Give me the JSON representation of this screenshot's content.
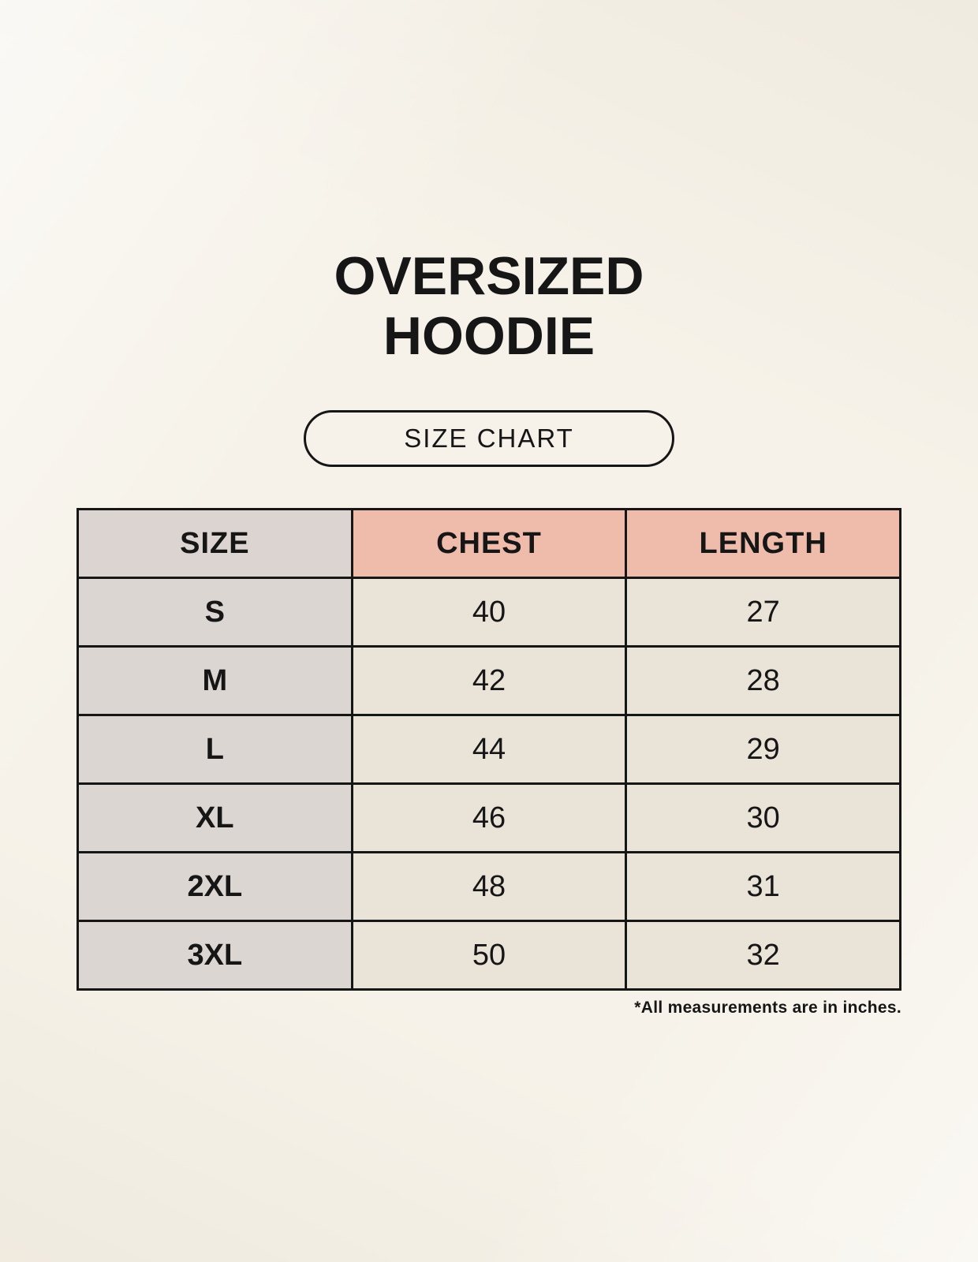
{
  "page": {
    "background_color": "#f6f2e9"
  },
  "title": {
    "line1": "OVERSIZED",
    "line2": "HOODIE"
  },
  "size_chart_button": {
    "label": "SIZE CHART"
  },
  "table": {
    "columns": [
      "SIZE",
      "CHEST",
      "LENGTH"
    ],
    "rows": [
      {
        "size": "S",
        "chest": "40",
        "length": "27"
      },
      {
        "size": "M",
        "chest": "42",
        "length": "28"
      },
      {
        "size": "L",
        "chest": "44",
        "length": "29"
      },
      {
        "size": "XL",
        "chest": "46",
        "length": "30"
      },
      {
        "size": "2XL",
        "chest": "48",
        "length": "31"
      },
      {
        "size": "3XL",
        "chest": "50",
        "length": "32"
      }
    ],
    "colors": {
      "size_header_bg": "#dbd4d0",
      "measure_header_bg": "#efbcab",
      "size_cell_bg": "#dcd6d2",
      "data_cell_bg": "#eae3d8",
      "border": "#161616",
      "page_bg": "#f6f2e9"
    },
    "units_note": "inches"
  },
  "footnote": "*All measurements are in inches."
}
